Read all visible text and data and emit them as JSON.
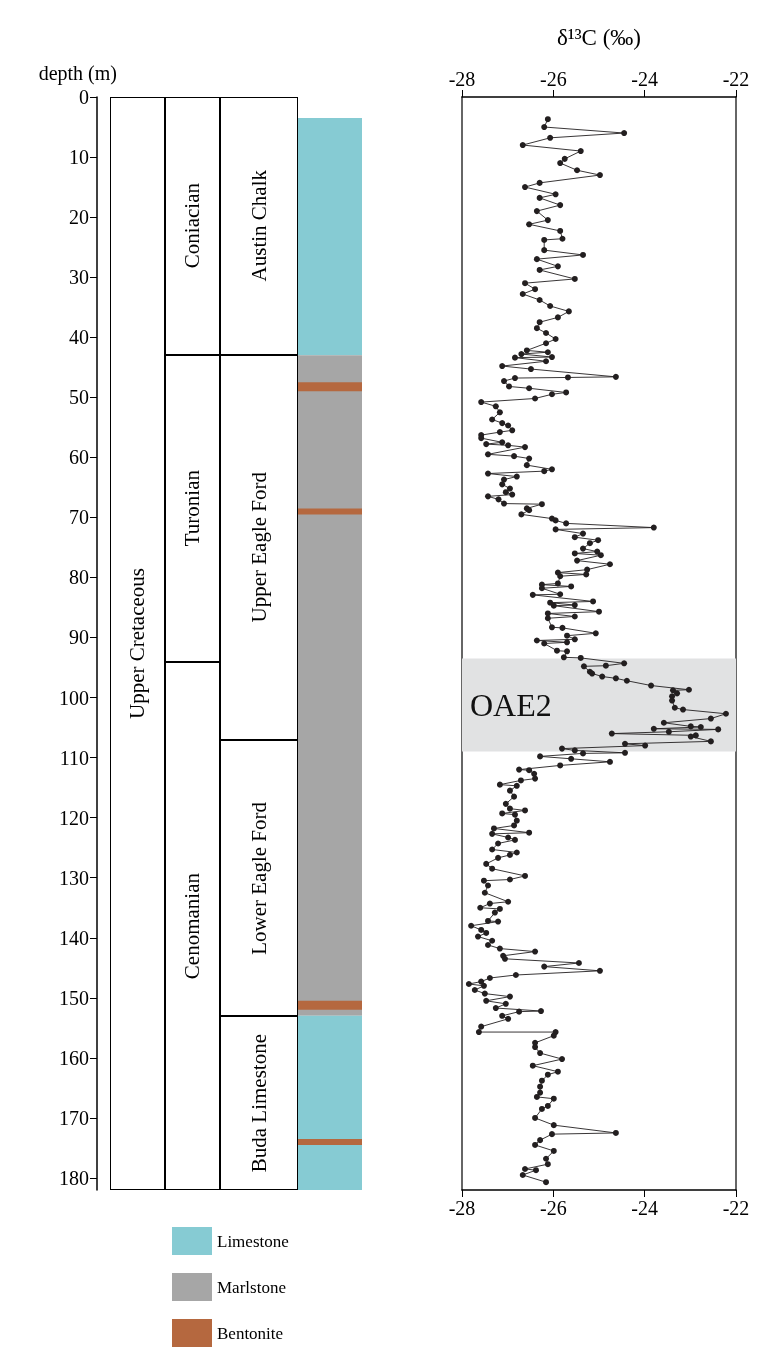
{
  "chart_data": [
    {
      "type": "other",
      "annotations": [
        "Upper Cretaceous",
        "Coniacian",
        "Turonian",
        "Cenomanian",
        "Austin Chalk",
        "Upper Eagle Ford",
        "Lower Eagle Ford",
        "Buda Limestone"
      ]
    },
    {
      "type": "bar",
      "ylabel": "depth (m)",
      "categories": [
        null
      ],
      "ylim": [
        182,
        0
      ],
      "yticks": [
        0,
        10,
        20,
        30,
        40,
        50,
        60,
        70,
        80,
        90,
        100,
        110,
        120,
        130,
        140,
        150,
        160,
        170,
        180
      ],
      "tick_labels": "y",
      "legend": "bottom",
      "series": [
        {
          "name": "Limestone",
          "values": [
            39.5
          ],
          "base": [
            3.5
          ],
          "color": "#86cbd3"
        },
        {
          "name": "Marlstone",
          "values": [
            110
          ],
          "base": [
            43
          ],
          "color": "#a6a6a6"
        },
        {
          "values": [
            29
          ],
          "base": [
            153
          ],
          "color": "#86cbd3"
        },
        {
          "name": "Bentonite",
          "values": [
            1.5
          ],
          "base": [
            47.5
          ],
          "color": "#b5683f"
        },
        {
          "values": [
            1
          ],
          "base": [
            68.5
          ],
          "color": "#b5683f"
        },
        {
          "values": [
            1.5
          ],
          "base": [
            150.5
          ],
          "color": "#b5683f"
        },
        {
          "values": [
            1
          ],
          "base": [
            173.5
          ],
          "color": "#b5683f"
        }
      ]
    },
    {
      "type": "line",
      "x2label": "δ¹³C (‰)",
      "xlim": [
        -28,
        -22
      ],
      "xticks": [
        -28,
        -26,
        -24,
        -22
      ],
      "x2lim": [
        -28,
        -22
      ],
      "x2ticks": [
        -28,
        -26,
        -24,
        -22
      ],
      "ylim": [
        182,
        0
      ],
      "tick_labels": "x",
      "marker": "circle",
      "bands": [
        {
          "axis": "y",
          "from": 93.5,
          "to": 109,
          "label": "OAE2",
          "color": "#e1e2e3"
        }
      ],
      "series": [
        {
          "color": "#231f20",
          "x": [
            -26.12,
            -26.2,
            -24.45,
            -26.07,
            -26.67,
            -25.4,
            -25.75,
            -25.85,
            -25.48,
            -24.98,
            -26.3,
            -26.62,
            -25.95,
            -26.3,
            -25.85,
            -26.36,
            -26.12,
            -26.53,
            -25.85,
            -25.8,
            -26.2,
            -26.2,
            -25.35,
            -26.36,
            -25.9,
            -26.3,
            -25.53,
            -26.62,
            -26.4,
            -26.67,
            -26.3,
            -26.07,
            -25.66,
            -25.9,
            -26.3,
            -26.36,
            -26.16,
            -25.95,
            -26.16,
            -26.58,
            -26.12,
            -26.7,
            -26.03,
            -26.84,
            -26.16,
            -27.12,
            -26.49,
            -24.63,
            -25.68,
            -26.84,
            -27.08,
            -26.97,
            -26.53,
            -25.72,
            -26.03,
            -26.4,
            -27.58,
            -27.26,
            -27.17,
            -27.34,
            -27.12,
            -26.99,
            -26.9,
            -27.17,
            -27.58,
            -27.58,
            -27.12,
            -27.47,
            -26.99,
            -26.62,
            -27.43,
            -26.86,
            -26.53,
            -26.58,
            -26.03,
            -26.2,
            -27.43,
            -26.8,
            -27.08,
            -27.12,
            -26.95,
            -27.04,
            -26.9,
            -27.43,
            -27.2,
            -27.08,
            -26.25,
            -26.58,
            -26.53,
            -26.7,
            -26.03,
            -25.95,
            -25.72,
            -23.8,
            -25.95,
            -25.35,
            -25.53,
            -25.02,
            -25.2,
            -25.35,
            -25.04,
            -25.53,
            -24.96,
            -25.48,
            -24.76,
            -25.26,
            -25.9,
            -25.28,
            -25.85,
            -25.9,
            -26.25,
            -25.61,
            -26.25,
            -25.85,
            -26.45,
            -25.13,
            -26.07,
            -25.53,
            -25.99,
            -25.0,
            -26.12,
            -25.53,
            -26.12,
            -26.03,
            -25.8,
            -25.07,
            -25.7,
            -25.53,
            -26.36,
            -25.7,
            -26.2,
            -25.92,
            -25.7,
            -25.77,
            -25.4,
            -24.45,
            -24.85,
            -25.33,
            -25.2,
            -25.15,
            -24.93,
            -24.63,
            -24.39,
            -23.86,
            -23.03,
            -23.38,
            -23.29,
            -23.4,
            -23.4,
            -23.34,
            -23.16,
            -22.22,
            -22.55,
            -23.58,
            -22.99,
            -22.77,
            -23.8,
            -22.39,
            -23.47,
            -24.72,
            -22.88,
            -22.99,
            -22.55,
            -24.43,
            -23.99,
            -25.81,
            -25.53,
            -24.43,
            -25.35,
            -26.29,
            -25.61,
            -24.76,
            -25.85,
            -26.75,
            -26.53,
            -26.42,
            -26.4,
            -26.71,
            -27.17,
            -26.8,
            -26.95,
            -26.86,
            -27.04,
            -26.95,
            -26.62,
            -27.12,
            -26.84,
            -26.8,
            -26.86,
            -27.3,
            -26.53,
            -27.34,
            -26.99,
            -26.84,
            -27.21,
            -27.34,
            -26.8,
            -26.95,
            -27.21,
            -27.47,
            -27.34,
            -26.62,
            -26.95,
            -27.52,
            -27.43,
            -27.5,
            -26.99,
            -27.39,
            -27.6,
            -27.17,
            -27.28,
            -27.43,
            -27.21,
            -27.8,
            -27.58,
            -27.47,
            -27.65,
            -27.34,
            -27.43,
            -27.17,
            -26.4,
            -27.1,
            -27.06,
            -25.44,
            -26.2,
            -24.98,
            -26.82,
            -27.39,
            -27.58,
            -27.85,
            -27.52,
            -27.72,
            -27.5,
            -26.95,
            -27.47,
            -27.04,
            -27.26,
            -26.27,
            -26.75,
            -27.12,
            -26.99,
            -27.58,
            -27.63,
            -25.95,
            -25.99,
            -26.4,
            -26.4,
            -26.29,
            -25.81,
            -26.45,
            -25.9,
            -26.12,
            -26.25,
            -26.29,
            -26.29,
            -26.36,
            -25.99,
            -26.12,
            -26.25,
            -26.4,
            -25.99,
            -24.63,
            -26.03,
            -26.29,
            -26.4,
            -25.99,
            -26.16,
            -26.12,
            -26.62,
            -26.38,
            -26.67,
            -26.16
          ],
          "values": [
            3.7,
            5.0,
            6.0,
            6.8,
            8.0,
            9.0,
            10.3,
            11.0,
            12.2,
            13.0,
            14.3,
            15.0,
            16.2,
            16.8,
            18.0,
            19.0,
            20.5,
            21.2,
            22.3,
            23.6,
            23.8,
            25.5,
            26.3,
            27.0,
            28.2,
            28.8,
            30.3,
            31.0,
            32.0,
            32.8,
            33.8,
            34.8,
            35.7,
            36.7,
            37.5,
            38.5,
            39.3,
            40.3,
            41.0,
            42.2,
            42.5,
            42.8,
            43.3,
            43.4,
            44.0,
            44.8,
            45.3,
            46.6,
            46.7,
            46.8,
            47.3,
            48.2,
            48.5,
            49.2,
            49.5,
            50.2,
            50.8,
            51.5,
            52.5,
            53.7,
            54.3,
            54.7,
            55.5,
            55.8,
            56.3,
            56.8,
            57.5,
            57.8,
            58.0,
            58.3,
            59.5,
            59.8,
            60.2,
            61.3,
            62.0,
            62.3,
            62.7,
            63.2,
            63.7,
            64.5,
            65.2,
            65.8,
            66.2,
            66.5,
            67.0,
            67.7,
            67.8,
            68.5,
            68.8,
            69.5,
            70.2,
            70.5,
            71.0,
            71.7,
            72.0,
            72.7,
            73.3,
            73.8,
            74.3,
            75.2,
            75.7,
            76.0,
            76.3,
            77.2,
            77.8,
            78.7,
            79.2,
            79.5,
            79.8,
            81.0,
            81.2,
            81.5,
            81.8,
            82.8,
            82.9,
            84.0,
            84.2,
            84.6,
            84.7,
            85.7,
            86.0,
            86.5,
            86.8,
            88.3,
            88.4,
            89.3,
            89.7,
            90.3,
            90.5,
            90.8,
            91.0,
            92.2,
            92.3,
            93.3,
            93.4,
            94.3,
            94.7,
            94.8,
            95.7,
            96.0,
            96.5,
            96.8,
            97.2,
            98.0,
            98.7,
            98.8,
            99.3,
            99.8,
            100.5,
            101.7,
            102.0,
            102.7,
            103.5,
            104.2,
            104.8,
            104.9,
            105.2,
            105.3,
            105.7,
            106.0,
            106.3,
            106.5,
            107.3,
            107.7,
            108.0,
            108.5,
            108.8,
            109.2,
            109.3,
            109.8,
            110.2,
            110.7,
            111.3,
            112.0,
            112.1,
            112.7,
            113.5,
            113.8,
            114.5,
            114.7,
            115.5,
            116.5,
            117.7,
            118.5,
            118.8,
            119.3,
            119.5,
            120.5,
            121.3,
            121.8,
            122.5,
            122.7,
            123.3,
            123.7,
            124.3,
            125.3,
            125.8,
            126.2,
            126.7,
            127.7,
            128.5,
            129.7,
            130.3,
            130.5,
            131.3,
            132.5,
            134.0,
            134.3,
            135.0,
            135.2,
            135.8,
            137.2,
            137.3,
            138.0,
            138.7,
            139.2,
            139.8,
            140.5,
            141.2,
            141.8,
            142.3,
            143.0,
            143.5,
            144.2,
            144.8,
            145.5,
            146.2,
            146.7,
            147.3,
            147.7,
            148.0,
            148.7,
            149.3,
            149.8,
            150.5,
            151.0,
            151.7,
            152.2,
            152.3,
            153.0,
            153.5,
            154.8,
            155.7,
            155.7,
            156.3,
            157.5,
            158.2,
            159.2,
            160.2,
            161.3,
            162.3,
            162.8,
            163.8,
            164.8,
            165.8,
            166.5,
            166.8,
            168.0,
            168.5,
            170.0,
            171.2,
            172.5,
            172.7,
            173.7,
            174.5,
            175.5,
            176.8,
            177.7,
            178.5,
            178.7,
            179.5,
            180.7
          ]
        }
      ]
    }
  ]
}
